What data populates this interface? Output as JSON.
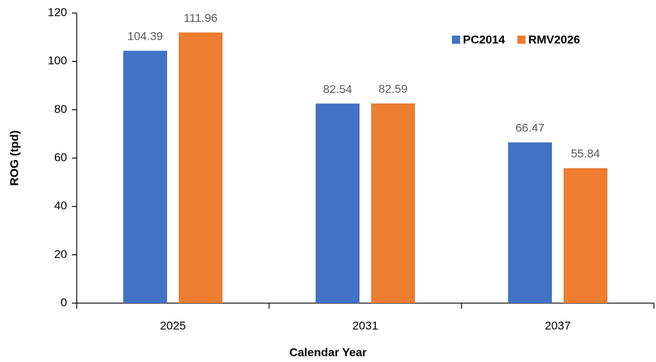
{
  "chart_data": {
    "type": "bar",
    "x_label": "Calendar Year",
    "y_label": "ROG (tpd)",
    "categories": [
      "2025",
      "2031",
      "2037"
    ],
    "series": [
      {
        "name": "PC2014",
        "color": "#4472c4",
        "values": [
          104.39,
          82.54,
          66.47
        ]
      },
      {
        "name": "RMV2026",
        "color": "#ed7d31",
        "values": [
          111.96,
          82.59,
          55.84
        ]
      }
    ],
    "ylim": [
      0,
      120
    ],
    "yticks": [
      0,
      20,
      40,
      60,
      80,
      100,
      120
    ],
    "grid": false,
    "legend": "top-right"
  }
}
